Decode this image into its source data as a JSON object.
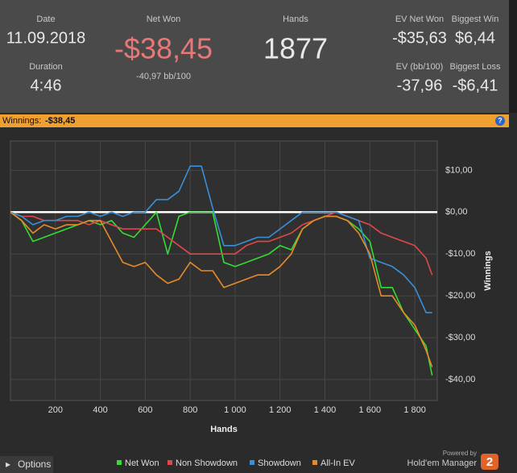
{
  "header": {
    "date_label": "Date",
    "date": "11.09.2018",
    "duration_label": "Duration",
    "duration": "4:46",
    "net_won_label": "Net Won",
    "net_won": "-$38,45",
    "net_won_bb": "-40,97 bb/100",
    "hands_label": "Hands",
    "hands": "1877",
    "ev_net_won_label": "EV Net Won",
    "ev_net_won": "-$35,63",
    "biggest_win_label": "Biggest Win",
    "biggest_win": "$6,44",
    "ev_bb_label": "EV (bb/100)",
    "ev_bb": "-37,96",
    "biggest_loss_label": "Biggest Loss",
    "biggest_loss": "-$6,41"
  },
  "winnings_bar": {
    "label": "Winnings:",
    "value": "-$38,45",
    "help": "?"
  },
  "chart_data": {
    "type": "line",
    "x_label": "Hands",
    "y_label": "Winnings",
    "x": [
      0,
      50,
      100,
      150,
      200,
      250,
      300,
      350,
      400,
      450,
      500,
      550,
      600,
      650,
      700,
      750,
      800,
      850,
      900,
      950,
      1000,
      1050,
      1100,
      1150,
      1200,
      1250,
      1300,
      1350,
      1400,
      1450,
      1500,
      1550,
      1600,
      1650,
      1700,
      1750,
      1800,
      1850,
      1877
    ],
    "series": [
      {
        "name": "Net Won",
        "color": "#33dd33",
        "values": [
          0,
          -2,
          -7,
          -6,
          -5,
          -4,
          -3,
          -2,
          -3,
          -2,
          -5,
          -6,
          -3,
          0,
          -10,
          -1,
          0,
          0,
          0,
          -12,
          -13,
          -12,
          -11,
          -10,
          -8,
          -9,
          -4,
          -2,
          -1,
          -1,
          -2,
          -4,
          -7,
          -18,
          -18,
          -24,
          -28,
          -32,
          -39
        ]
      },
      {
        "name": "Non Showdown",
        "color": "#e04848",
        "values": [
          0,
          -1,
          -1,
          -2,
          -2,
          -2,
          -2,
          -3,
          -2,
          -3,
          -4,
          -4,
          -4,
          -4,
          -6,
          -8,
          -10,
          -10,
          -10,
          -10,
          -10,
          -8,
          -7,
          -7,
          -6,
          -5,
          -3,
          -2,
          -1,
          0,
          -1,
          -2,
          -3,
          -5,
          -6,
          -7,
          -8,
          -11,
          -15
        ]
      },
      {
        "name": "Showdown",
        "color": "#3a8fd8",
        "values": [
          0,
          -1,
          -3,
          -2,
          -2,
          -1,
          -1,
          0,
          -1,
          0,
          -1,
          0,
          0,
          3,
          3,
          5,
          11,
          11,
          1,
          -8,
          -8,
          -7,
          -6,
          -6,
          -4,
          -2,
          0,
          0,
          0,
          0,
          -1,
          -2,
          -11,
          -12,
          -13,
          -15,
          -18,
          -24,
          -24
        ]
      },
      {
        "name": "All-In EV",
        "color": "#e88a2a",
        "values": [
          0,
          -2,
          -5,
          -3,
          -4,
          -3,
          -3,
          -2,
          -2,
          -7,
          -12,
          -13,
          -12,
          -15,
          -17,
          -16,
          -12,
          -14,
          -14,
          -18,
          -17,
          -16,
          -15,
          -15,
          -13,
          -10,
          -4,
          -2,
          -1,
          -1,
          -2,
          -5,
          -10,
          -20,
          -20,
          -24,
          -27,
          -33,
          -37
        ]
      }
    ],
    "xlim": [
      0,
      1900
    ],
    "ylim": [
      -45,
      17
    ],
    "xticks": [
      200,
      400,
      600,
      800,
      {
        "value": 1000,
        "label": "1 000"
      },
      {
        "value": 1200,
        "label": "1 200"
      },
      {
        "value": 1400,
        "label": "1 400"
      },
      {
        "value": 1600,
        "label": "1 600"
      },
      {
        "value": 1800,
        "label": "1 800"
      }
    ],
    "yticks": [
      {
        "value": -40,
        "label": "-$40,00"
      },
      {
        "value": -30,
        "label": "-$30,00"
      },
      {
        "value": -20,
        "label": "-$20,00"
      },
      {
        "value": -10,
        "label": "-$10,00"
      },
      {
        "value": 0,
        "label": "$0,00"
      },
      {
        "value": 10,
        "label": "$10,00"
      }
    ],
    "grid": true
  },
  "footer": {
    "options": "Options",
    "powered_by": "Powered by",
    "brand": "Hold'em Manager",
    "version": "2"
  }
}
